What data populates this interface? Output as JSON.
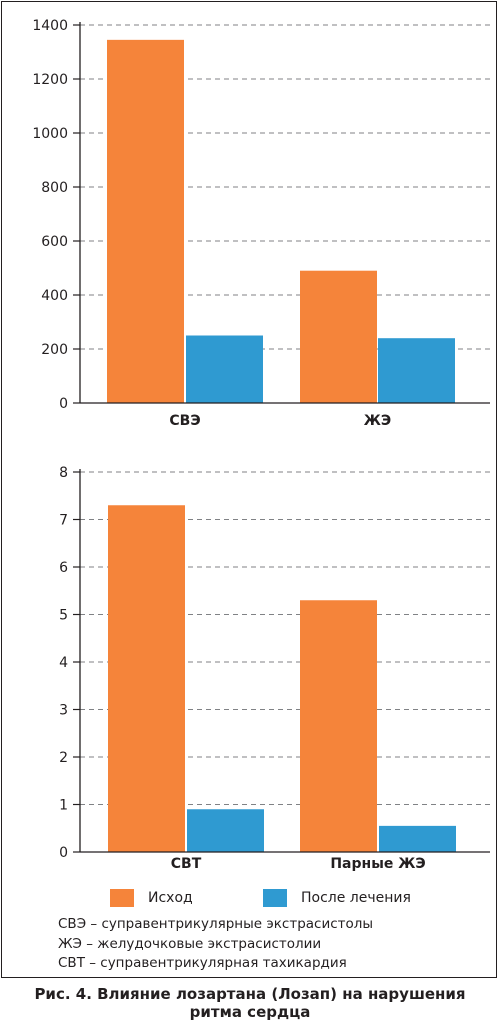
{
  "chart_data": [
    {
      "type": "bar",
      "title": "",
      "xlabel": "",
      "ylabel": "",
      "categories": [
        "СВЭ",
        "ЖЭ"
      ],
      "series": [
        {
          "name": "Исход",
          "values": [
            1345,
            490
          ]
        },
        {
          "name": "После лечения",
          "values": [
            250,
            240
          ]
        }
      ],
      "ylim": [
        0,
        1400
      ],
      "yticks": [
        0,
        200,
        400,
        600,
        800,
        1000,
        1200,
        1400
      ],
      "grid": true
    },
    {
      "type": "bar",
      "title": "",
      "xlabel": "",
      "ylabel": "",
      "categories": [
        "СВТ",
        "Парные ЖЭ"
      ],
      "series": [
        {
          "name": "Исход",
          "values": [
            7.3,
            5.3
          ]
        },
        {
          "name": "После лечения",
          "values": [
            0.9,
            0.55
          ]
        }
      ],
      "ylim": [
        0,
        8
      ],
      "yticks": [
        0,
        1,
        2,
        3,
        4,
        5,
        6,
        7,
        8
      ],
      "grid": true
    }
  ],
  "colors": {
    "series_1": "#f5843a",
    "series_2": "#2f9ad1",
    "grid": "#808285",
    "axis": "#231f20"
  },
  "legend": {
    "items": [
      {
        "label": "Исход",
        "color": "#f5843a"
      },
      {
        "label": "После лечения",
        "color": "#2f9ad1"
      }
    ]
  },
  "notes": [
    "СВЭ – суправентрикулярные экстрасистолы",
    "ЖЭ – желудочковые экстрасистолии",
    "СВТ – суправентрикулярная тахикардия"
  ],
  "caption": {
    "line1": "Рис. 4. Влияние лозартана (Лозап) на нарушения",
    "line2": "ритма сердца"
  }
}
